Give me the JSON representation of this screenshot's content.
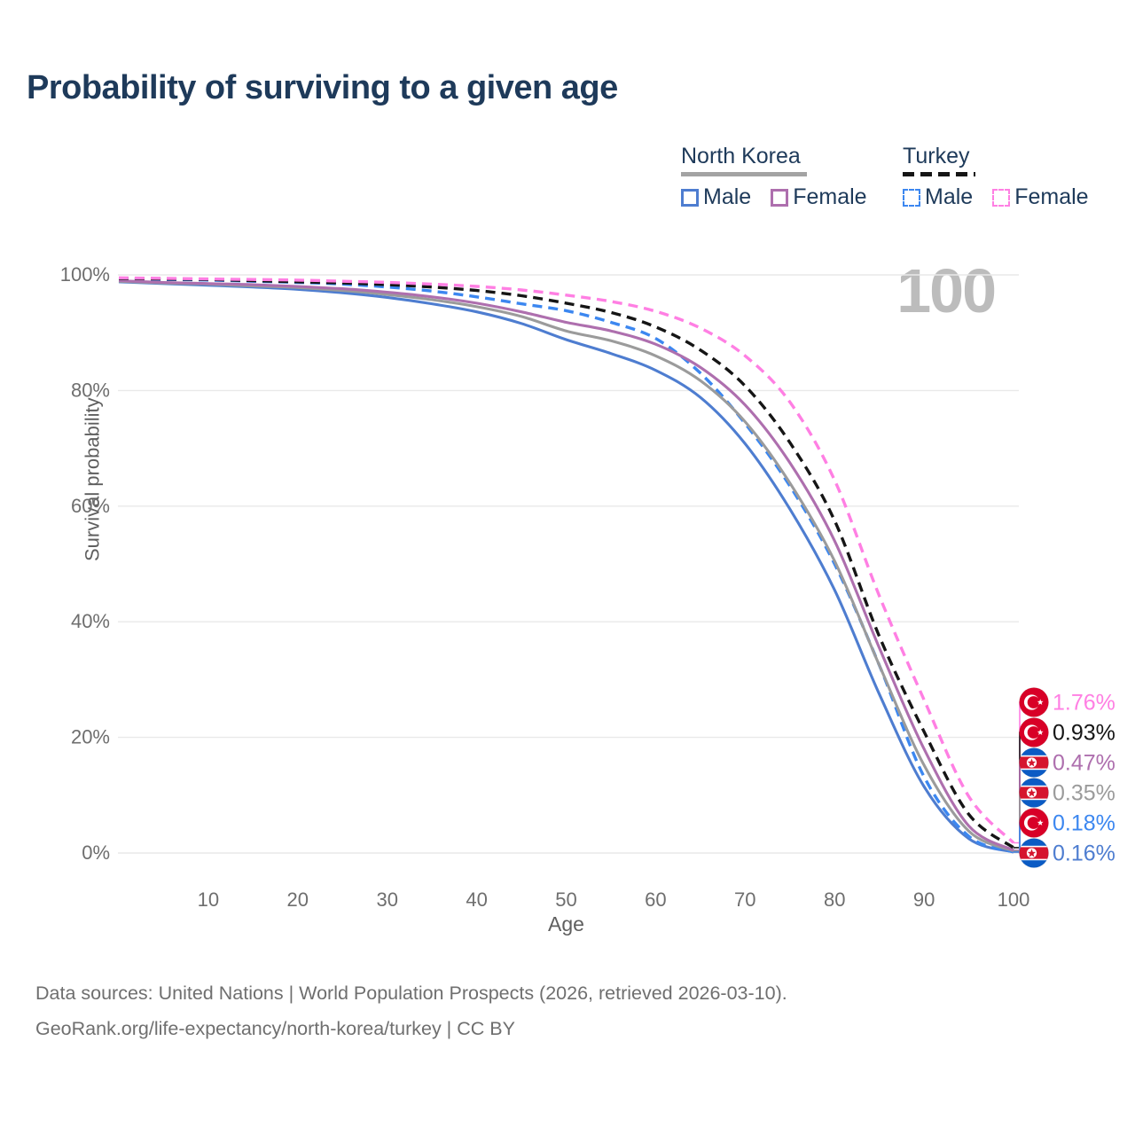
{
  "title": "Probability of surviving to a given age",
  "watermark": "100",
  "legend": {
    "north_korea": {
      "label": "North Korea",
      "male": "Male",
      "female": "Female"
    },
    "turkey": {
      "label": "Turkey",
      "male": "Male",
      "female": "Female"
    }
  },
  "axes": {
    "y_label": "Survival probability",
    "x_label": "Age",
    "y_ticks": [
      "0%",
      "20%",
      "40%",
      "60%",
      "80%",
      "100%"
    ],
    "x_ticks": [
      "10",
      "20",
      "30",
      "40",
      "50",
      "60",
      "70",
      "80",
      "90",
      "100"
    ]
  },
  "footer": {
    "line1": "Data sources: United Nations | World Population Prospects (2026, retrieved 2026-03-10).",
    "line2": "GeoRank.org/life-expectancy/north-korea/turkey | CC BY"
  },
  "chart_data": {
    "type": "line",
    "title": "Probability of surviving to a given age",
    "xlabel": "Age",
    "ylabel": "Survival probability",
    "xlim": [
      0,
      100
    ],
    "ylim": [
      0,
      100
    ],
    "grid": "horizontal",
    "legend_position": "top-right",
    "x": [
      0,
      5,
      10,
      15,
      20,
      25,
      30,
      35,
      40,
      45,
      50,
      55,
      60,
      65,
      70,
      75,
      80,
      85,
      90,
      95,
      100
    ],
    "series": [
      {
        "name": "Turkey Female",
        "country": "turkey",
        "color": "#ff7fe3",
        "dash": true,
        "end_label": "1.76%",
        "values": [
          99.5,
          99.4,
          99.3,
          99.2,
          99.1,
          98.9,
          98.7,
          98.4,
          98.0,
          97.4,
          96.5,
          95.4,
          93.7,
          90.8,
          86.0,
          78.0,
          64.5,
          44.5,
          26.5,
          9.8,
          1.76
        ]
      },
      {
        "name": "Turkey",
        "country": "turkey",
        "color": "#151515",
        "dash": true,
        "end_label": "0.93%",
        "values": [
          99.4,
          99.3,
          99.2,
          99.0,
          98.8,
          98.6,
          98.3,
          97.9,
          97.3,
          96.4,
          95.1,
          93.5,
          91.0,
          87.0,
          80.8,
          71.0,
          57.5,
          37.5,
          21.0,
          6.7,
          0.93
        ]
      },
      {
        "name": "North Korea Female",
        "country": "north_korea",
        "color": "#ae6fae",
        "dash": false,
        "end_label": "0.47%",
        "values": [
          99.0,
          98.7,
          98.5,
          98.3,
          98.0,
          97.6,
          97.0,
          96.2,
          95.1,
          93.6,
          91.8,
          90.3,
          88.0,
          84.0,
          77.5,
          67.5,
          54.0,
          35.5,
          18.0,
          4.7,
          0.47
        ]
      },
      {
        "name": "North Korea",
        "country": "north_korea",
        "color": "#9b9b9b",
        "dash": false,
        "end_label": "0.35%",
        "values": [
          98.9,
          98.6,
          98.4,
          98.1,
          97.8,
          97.3,
          96.6,
          95.7,
          94.5,
          92.8,
          90.3,
          88.6,
          86.0,
          81.7,
          74.6,
          64.0,
          50.5,
          32.5,
          15.2,
          3.8,
          0.35
        ]
      },
      {
        "name": "Turkey Male",
        "country": "turkey",
        "color": "#3c87f0",
        "dash": true,
        "end_label": "0.18%",
        "values": [
          99.3,
          99.2,
          99.1,
          98.9,
          98.7,
          98.4,
          97.9,
          97.2,
          96.2,
          95.0,
          93.8,
          91.8,
          89.0,
          83.0,
          74.3,
          63.5,
          50.0,
          32.5,
          13.2,
          2.9,
          0.18
        ]
      },
      {
        "name": "North Korea Male",
        "country": "north_korea",
        "color": "#4e7dd0",
        "dash": false,
        "end_label": "0.16%",
        "values": [
          98.8,
          98.5,
          98.2,
          97.9,
          97.5,
          96.9,
          96.1,
          95.0,
          93.6,
          91.6,
          88.8,
          86.4,
          83.5,
          78.8,
          70.8,
          59.5,
          45.5,
          27.5,
          11.5,
          2.5,
          0.16
        ]
      }
    ]
  }
}
